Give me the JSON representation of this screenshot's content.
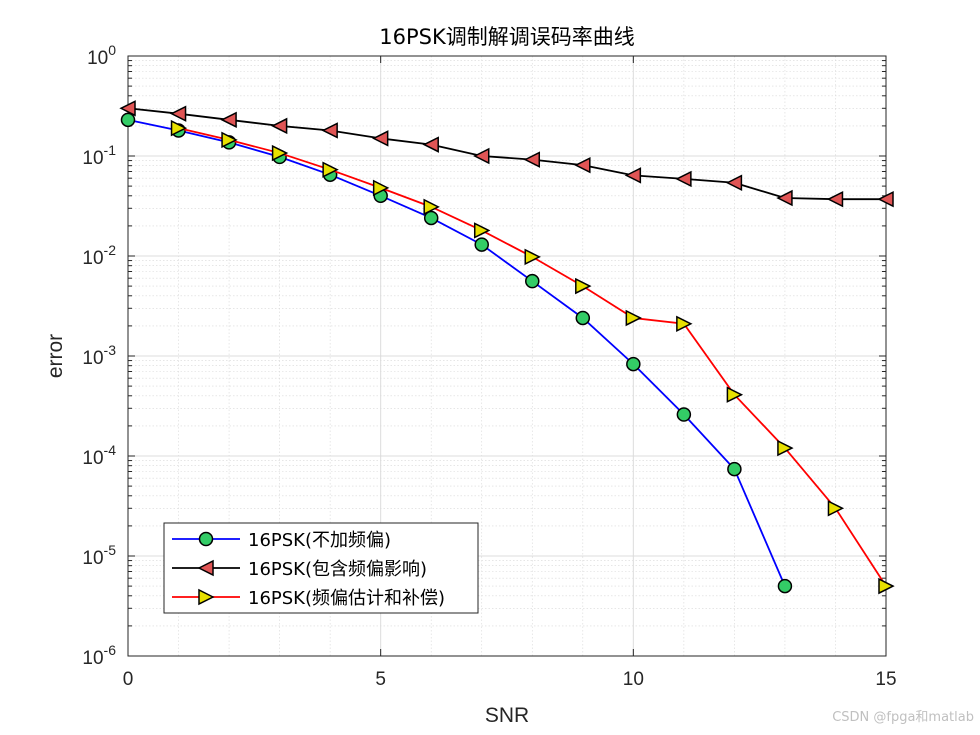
{
  "watermark": "CSDN @fpga和matlab",
  "chart_data": {
    "type": "line",
    "title": "16PSK调制解调误码率曲线",
    "xlabel": "SNR",
    "ylabel": "error",
    "xlim": [
      0,
      15
    ],
    "ylim": [
      1e-06,
      1
    ],
    "yscale": "log",
    "grid": true,
    "minor_grid": true,
    "legend_position": "bottom-left",
    "x_ticks": [
      {
        "value": 0,
        "label": "0"
      },
      {
        "value": 5,
        "label": "5"
      },
      {
        "value": 10,
        "label": "10"
      },
      {
        "value": 15,
        "label": "15"
      }
    ],
    "y_ticks": [
      {
        "exp": 0,
        "base": "10",
        "sup": "0"
      },
      {
        "exp": -1,
        "base": "10",
        "sup": "-1"
      },
      {
        "exp": -2,
        "base": "10",
        "sup": "-2"
      },
      {
        "exp": -3,
        "base": "10",
        "sup": "-3"
      },
      {
        "exp": -4,
        "base": "10",
        "sup": "-4"
      },
      {
        "exp": -5,
        "base": "10",
        "sup": "-5"
      },
      {
        "exp": -6,
        "base": "10",
        "sup": "-6"
      }
    ],
    "series": [
      {
        "name": "16PSK(不加频偏)",
        "color": "#0000ff",
        "marker": "circle",
        "marker_fill": "#33cc66",
        "x": [
          0,
          1,
          2,
          3,
          4,
          5,
          6,
          7,
          8,
          9,
          10,
          11,
          12,
          13
        ],
        "y": [
          0.23,
          0.18,
          0.137,
          0.098,
          0.065,
          0.04,
          0.024,
          0.013,
          0.0056,
          0.0024,
          0.00083,
          0.00026,
          7.4e-05,
          5e-06
        ]
      },
      {
        "name": "16PSK(包含频偏影响)",
        "color": "#000000",
        "marker": "triangle-left",
        "marker_fill": "#e05555",
        "x": [
          0,
          1,
          2,
          3,
          4,
          5,
          6,
          7,
          8,
          9,
          10,
          11,
          12,
          13,
          14,
          15
        ],
        "y": [
          0.3,
          0.265,
          0.23,
          0.2,
          0.18,
          0.15,
          0.13,
          0.1,
          0.092,
          0.081,
          0.064,
          0.059,
          0.054,
          0.038,
          0.037,
          0.037
        ]
      },
      {
        "name": "16PSK(频偏估计和补偿)",
        "color": "#ff0000",
        "marker": "triangle-right",
        "marker_fill": "#e8e000",
        "x": [
          1,
          2,
          3,
          4,
          5,
          6,
          7,
          8,
          9,
          10,
          11,
          12,
          13,
          14,
          15
        ],
        "y": [
          0.19,
          0.145,
          0.107,
          0.073,
          0.048,
          0.031,
          0.018,
          0.0098,
          0.005,
          0.0024,
          0.0021,
          0.00041,
          0.00012,
          3e-05,
          5e-06
        ]
      }
    ]
  }
}
